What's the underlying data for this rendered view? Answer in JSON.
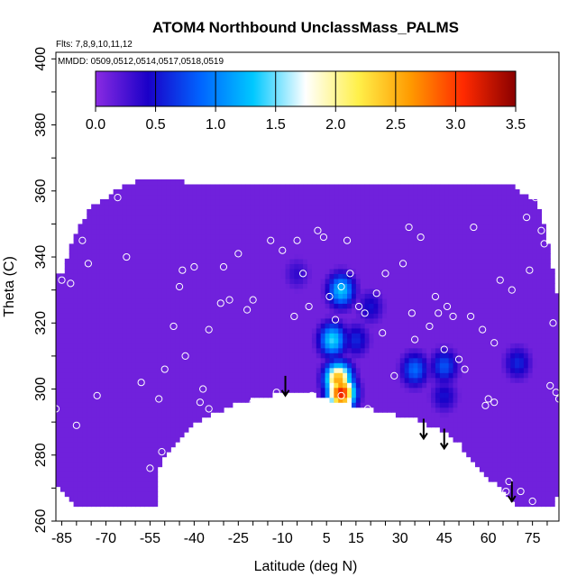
{
  "chart_data": {
    "type": "heatmap",
    "title": "ATOM4 Northbound UnclassMass_PALMS",
    "subtitle_flights": "Flts: 7,8,9,10,11,12",
    "subtitle_mmdd": "MMDD: 0509,0512,0514,0517,0518,0519",
    "xlabel": "Latitude (deg N)",
    "ylabel": "Theta (C)",
    "xlim": [
      -87,
      84
    ],
    "ylim": [
      260,
      402
    ],
    "x_ticks": [
      "-85",
      "-70",
      "-55",
      "-40",
      "-25",
      "-10",
      "5",
      "15",
      "30",
      "45",
      "60",
      "75"
    ],
    "x_tick_values": [
      -85,
      -70,
      -55,
      -40,
      -25,
      -10,
      5,
      15,
      30,
      45,
      60,
      75
    ],
    "y_ticks": [
      "260",
      "280",
      "300",
      "320",
      "340",
      "360",
      "380",
      "400"
    ],
    "y_tick_values": [
      260,
      280,
      300,
      320,
      340,
      360,
      380,
      400
    ],
    "colorbar": {
      "min": 0.0,
      "max": 3.5,
      "ticks": [
        "0.0",
        "0.5",
        "1.0",
        "1.5",
        "2.0",
        "2.5",
        "3.0",
        "3.5"
      ],
      "tick_values": [
        0.0,
        0.5,
        1.0,
        1.5,
        2.0,
        2.5,
        3.0,
        3.5
      ],
      "colors": [
        "#8a2be2",
        "#1a00c8",
        "#0064ff",
        "#00c8ff",
        "#ffffff",
        "#fff04a",
        "#ff9a00",
        "#ff2a00",
        "#8a0000"
      ]
    },
    "background_value": 0.1,
    "features": [
      {
        "lat": 7,
        "theta": 315,
        "value": 1.4
      },
      {
        "lat": 9,
        "theta": 303,
        "value": 2.6
      },
      {
        "lat": 10,
        "theta": 299,
        "value": 3.2
      },
      {
        "lat": 10,
        "theta": 330,
        "value": 1.3
      },
      {
        "lat": 15,
        "theta": 315,
        "value": 0.6
      },
      {
        "lat": 35,
        "theta": 306,
        "value": 0.9
      },
      {
        "lat": 45,
        "theta": 307,
        "value": 0.8
      },
      {
        "lat": 45,
        "theta": 298,
        "value": 0.5
      },
      {
        "lat": 20,
        "theta": 325,
        "value": 0.5
      },
      {
        "lat": 70,
        "theta": 308,
        "value": 0.6
      },
      {
        "lat": -5,
        "theta": 335,
        "value": 0.35
      }
    ],
    "samples": [
      [
        -82,
        332
      ],
      [
        -78,
        345
      ],
      [
        -76,
        338
      ],
      [
        -70,
        362
      ],
      [
        -58,
        302
      ],
      [
        -52,
        297
      ],
      [
        -50,
        306
      ],
      [
        -47,
        319
      ],
      [
        -45,
        331
      ],
      [
        -44,
        336
      ],
      [
        -40,
        337
      ],
      [
        -38,
        296
      ],
      [
        -35,
        294
      ],
      [
        -35,
        318
      ],
      [
        -30,
        337
      ],
      [
        -28,
        327
      ],
      [
        -25,
        341
      ],
      [
        -22,
        324
      ],
      [
        -20,
        327
      ],
      [
        -14,
        345
      ],
      [
        -10,
        342
      ],
      [
        -6,
        322
      ],
      [
        -5,
        345
      ],
      [
        -3,
        335
      ],
      [
        -1,
        325
      ],
      [
        0,
        298
      ],
      [
        2,
        348
      ],
      [
        6,
        328
      ],
      [
        8,
        321
      ],
      [
        10,
        298
      ],
      [
        10,
        331
      ],
      [
        12,
        345
      ],
      [
        13,
        335
      ],
      [
        16,
        325
      ],
      [
        18,
        323
      ],
      [
        19,
        294
      ],
      [
        22,
        329
      ],
      [
        25,
        335
      ],
      [
        28,
        304
      ],
      [
        31,
        338
      ],
      [
        34,
        323
      ],
      [
        35,
        315
      ],
      [
        37,
        346
      ],
      [
        40,
        319
      ],
      [
        42,
        328
      ],
      [
        43,
        323
      ],
      [
        45,
        312
      ],
      [
        46,
        325
      ],
      [
        48,
        322
      ],
      [
        50,
        309
      ],
      [
        52,
        306
      ],
      [
        54,
        322
      ],
      [
        58,
        318
      ],
      [
        59,
        295
      ],
      [
        62,
        296
      ],
      [
        62,
        314
      ],
      [
        64,
        333
      ],
      [
        66,
        269
      ],
      [
        67,
        272
      ],
      [
        71,
        269
      ],
      [
        73,
        352
      ],
      [
        74,
        336
      ],
      [
        75,
        266
      ],
      [
        76,
        358
      ],
      [
        78,
        348
      ],
      [
        80,
        357
      ],
      [
        81,
        301
      ],
      [
        82,
        320
      ],
      [
        83,
        299
      ],
      [
        84,
        297
      ],
      [
        -87,
        294
      ],
      [
        -85,
        333
      ],
      [
        -80,
        289
      ],
      [
        -73,
        298
      ],
      [
        -66,
        358
      ],
      [
        -55,
        276
      ],
      [
        -51,
        281
      ],
      [
        -43,
        310
      ],
      [
        -37,
        300
      ],
      [
        -20,
        296
      ],
      [
        -12,
        299
      ],
      [
        4,
        346
      ],
      [
        24,
        317
      ],
      [
        33,
        349
      ],
      [
        55,
        349
      ],
      [
        60,
        297
      ],
      [
        68,
        330
      ],
      [
        79,
        344
      ],
      [
        -63,
        340
      ],
      [
        -31,
        326
      ]
    ],
    "arrows": [
      {
        "lat": -9,
        "theta": 304
      },
      {
        "lat": 38,
        "theta": 291
      },
      {
        "lat": 45,
        "theta": 288
      },
      {
        "lat": 68,
        "theta": 272
      }
    ],
    "coverage_top": [
      [
        -85,
        335
      ],
      [
        -80,
        348
      ],
      [
        -75,
        355
      ],
      [
        -70,
        358
      ],
      [
        -65,
        361
      ],
      [
        -60,
        363
      ],
      [
        -55,
        363
      ],
      [
        -50,
        363
      ],
      [
        -45,
        363
      ],
      [
        -40,
        362
      ],
      [
        -30,
        362
      ],
      [
        -20,
        362
      ],
      [
        -10,
        362
      ],
      [
        0,
        362
      ],
      [
        10,
        362
      ],
      [
        20,
        362
      ],
      [
        30,
        362
      ],
      [
        40,
        362
      ],
      [
        50,
        362
      ],
      [
        55,
        362
      ],
      [
        60,
        362
      ],
      [
        65,
        362
      ],
      [
        68,
        362
      ],
      [
        72,
        359
      ],
      [
        77,
        356
      ],
      [
        80,
        345
      ],
      [
        82,
        335
      ],
      [
        84,
        325
      ]
    ],
    "coverage_bottom": [
      [
        -85,
        270
      ],
      [
        -80,
        264
      ],
      [
        -75,
        264
      ],
      [
        -70,
        264
      ],
      [
        -65,
        264
      ],
      [
        -60,
        264
      ],
      [
        -55,
        264
      ],
      [
        -53,
        264
      ],
      [
        -53,
        275
      ],
      [
        -50,
        280
      ],
      [
        -45,
        284
      ],
      [
        -40,
        290
      ],
      [
        -35,
        292
      ],
      [
        -30,
        294
      ],
      [
        -25,
        296
      ],
      [
        -20,
        297
      ],
      [
        -15,
        298
      ],
      [
        -10,
        299
      ],
      [
        -5,
        299
      ],
      [
        0,
        299
      ],
      [
        5,
        297
      ],
      [
        10,
        296
      ],
      [
        15,
        295
      ],
      [
        20,
        294
      ],
      [
        25,
        293
      ],
      [
        30,
        292
      ],
      [
        35,
        291
      ],
      [
        40,
        289
      ],
      [
        45,
        287
      ],
      [
        50,
        284
      ],
      [
        53,
        280
      ],
      [
        56,
        277
      ],
      [
        60,
        273
      ],
      [
        64,
        270
      ],
      [
        68,
        266
      ],
      [
        72,
        264
      ],
      [
        76,
        264
      ],
      [
        80,
        264
      ],
      [
        83,
        264
      ],
      [
        84,
        280
      ]
    ]
  }
}
